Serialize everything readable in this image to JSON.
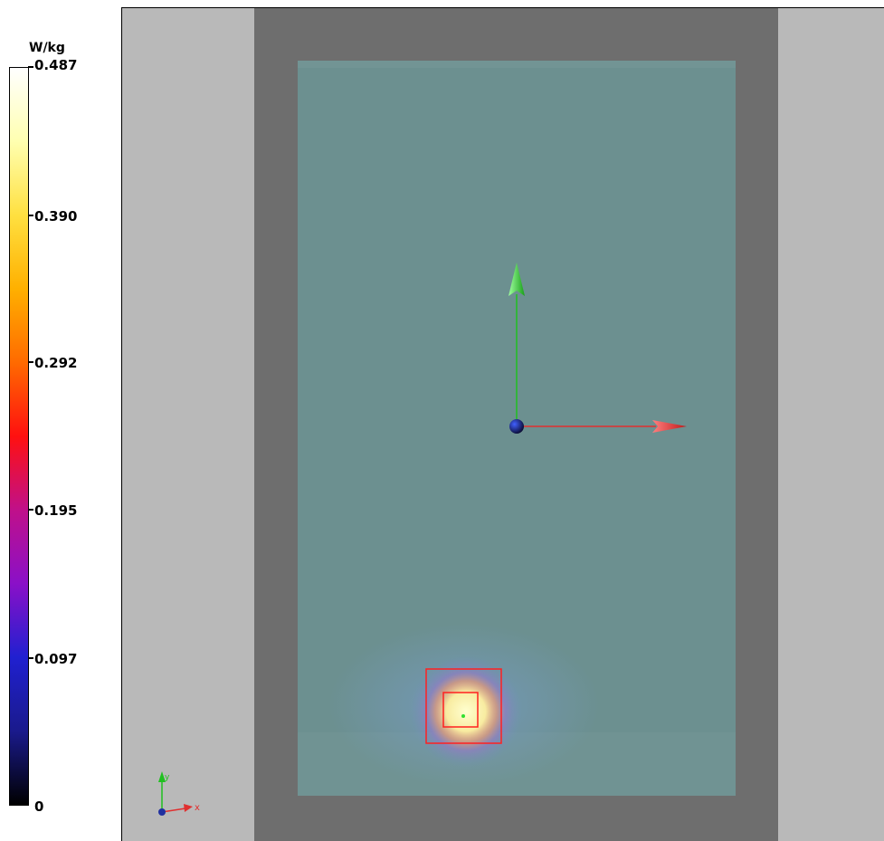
{
  "colorbar": {
    "unit": "W/kg",
    "ticks": [
      {
        "label": "0.487",
        "fraction": 1.0
      },
      {
        "label": "0.390",
        "fraction": 0.8
      },
      {
        "label": "0.292",
        "fraction": 0.6
      },
      {
        "label": "0.195",
        "fraction": 0.4
      },
      {
        "label": "0.097",
        "fraction": 0.2
      },
      {
        "label": "0",
        "fraction": 0.0
      }
    ],
    "gradient_colors": [
      "#000000",
      "#1a1a8c",
      "#2020d0",
      "#8a10c8",
      "#c0108a",
      "#ff1010",
      "#ff6a00",
      "#ffb000",
      "#ffe040",
      "#ffffb0",
      "#ffffff"
    ]
  },
  "viewport": {
    "colors": {
      "side_panels": "#b9b9b9",
      "frame": "#6e6e6e",
      "phantom": "#6c9090",
      "x_axis": "#e03030",
      "y_axis": "#20c020",
      "origin": "#1a2a8a",
      "measurement_box": "#ff2020"
    },
    "axis_labels": {
      "x": "x",
      "y": "y"
    }
  }
}
